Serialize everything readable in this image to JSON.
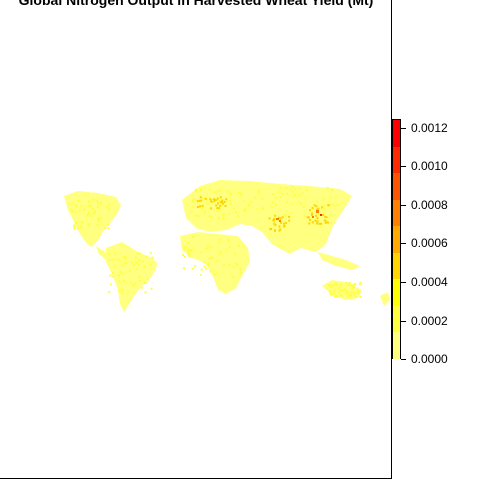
{
  "title": "Global Nitrogen Output in Harvested Wheat Yield (Mt)",
  "legend": {
    "labels": [
      "0.0012",
      "0.0010",
      "0.0008",
      "0.0006",
      "0.0004",
      "0.0002",
      "0.0000"
    ],
    "range": [
      0,
      0.00125
    ],
    "colors": [
      "#ffff80",
      "#ffff40",
      "#ffff00",
      "#ffd400",
      "#ffaa00",
      "#ff8000",
      "#ff5500",
      "#ff2a00",
      "#ff0000"
    ]
  },
  "map_colors": {
    "base": "#ffff80",
    "low": "#ffff40",
    "mid": "#ffd400",
    "high": "#ff8000",
    "peak": "#ff2a00"
  }
}
